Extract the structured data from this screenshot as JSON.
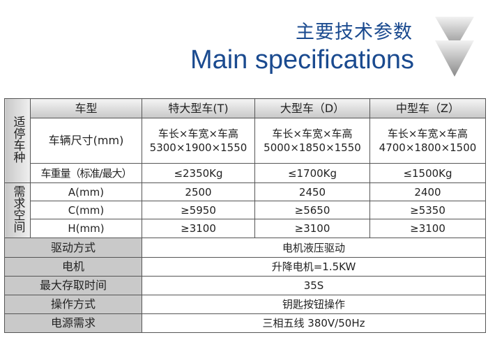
{
  "header": {
    "title_cn": "主要技术参数",
    "title_en": "Main specifications",
    "accent": "#1a4a8f",
    "icon": "chevron-down-icon"
  },
  "table": {
    "group1": "适停车种",
    "group2": "需求空间",
    "col_header": "车型",
    "columns": [
      "特大型车(T)",
      "大型车（D）",
      "中型车（Z）"
    ],
    "size_label": "车辆尺寸(mm)",
    "size_caption": [
      "车长×车宽×车高",
      "车长×车宽×车高",
      "车长×车宽×车高"
    ],
    "size_values": [
      "5300×1900×1550",
      "5000×1850×1550",
      "4700×1800×1500"
    ],
    "weight_label": "车重量（标准/最大）",
    "weight_values": [
      "≤2350Kg",
      "≤1700Kg",
      "≤1500Kg"
    ],
    "space_rows": [
      {
        "label": "A(mm)",
        "values": [
          "2500",
          "2450",
          "2400"
        ]
      },
      {
        "label": "C(mm)",
        "values": [
          "≥5950",
          "≥5650",
          "≥5350"
        ]
      },
      {
        "label": "H(mm)",
        "values": [
          "≥3100",
          "≥3100",
          "≥3100"
        ]
      }
    ],
    "spec_rows": [
      {
        "label": "驱动方式",
        "value": "电机液压驱动"
      },
      {
        "label": "电机",
        "value": "升降电机=1.5KW"
      },
      {
        "label": "最大存取时间",
        "value": "35S"
      },
      {
        "label": "操作方式",
        "value": "钥匙按钮操作"
      },
      {
        "label": "电源需求",
        "value": "三相五线 380V/50Hz"
      }
    ]
  }
}
